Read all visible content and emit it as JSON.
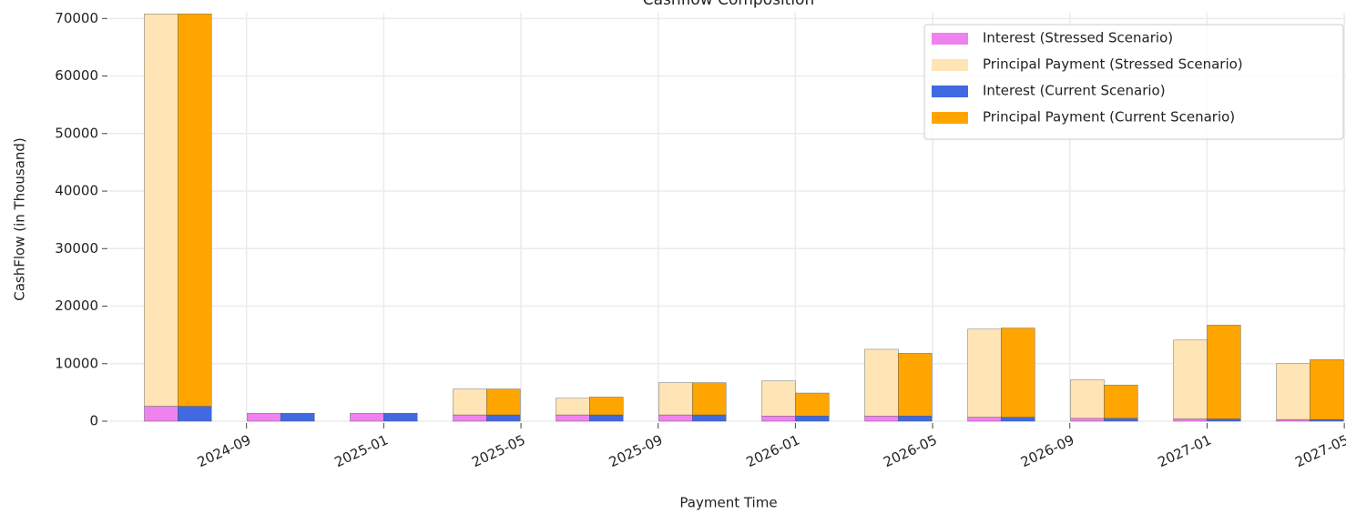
{
  "chart_data": {
    "type": "bar",
    "stacked": true,
    "title": "Cashflow Composition",
    "xlabel": "Payment Time",
    "ylabel": "CashFlow (in Thousand)",
    "x": [
      "2024-07",
      "2024-10",
      "2025-01",
      "2025-04",
      "2025-07",
      "2025-10",
      "2026-01",
      "2026-04",
      "2026-07",
      "2026-10",
      "2027-01",
      "2027-04"
    ],
    "xlim": [
      "2024-05",
      "2027-05"
    ],
    "xticks": [
      "2024-09",
      "2025-01",
      "2025-05",
      "2025-09",
      "2026-01",
      "2026-05",
      "2026-09",
      "2027-01",
      "2027-05"
    ],
    "ylim": [
      0,
      71000
    ],
    "yticks": [
      0,
      10000,
      20000,
      30000,
      40000,
      50000,
      60000,
      70000
    ],
    "grid": true,
    "legend": "upper right",
    "series": [
      {
        "name": "Interest (Stressed Scenario)",
        "color": "#ee82ee",
        "group": "stressed",
        "values": [
          2600,
          1400,
          1400,
          1100,
          1100,
          1100,
          900,
          900,
          700,
          500,
          400,
          300
        ]
      },
      {
        "name": "Principal Payment (Stressed Scenario)",
        "color": "#ffe4b5",
        "group": "stressed",
        "values": [
          68200,
          0,
          0,
          4500,
          2900,
          5600,
          6100,
          11600,
          15300,
          6700,
          13700,
          9700
        ]
      },
      {
        "name": "Interest (Current Scenario)",
        "color": "#4169e1",
        "group": "current",
        "values": [
          2600,
          1400,
          1400,
          1100,
          1100,
          1100,
          900,
          900,
          700,
          500,
          400,
          300
        ]
      },
      {
        "name": "Principal Payment (Current Scenario)",
        "color": "#ffa500",
        "group": "current",
        "values": [
          68200,
          0,
          0,
          4500,
          3100,
          5600,
          4000,
          10900,
          15500,
          5800,
          16300,
          10400
        ]
      }
    ]
  }
}
